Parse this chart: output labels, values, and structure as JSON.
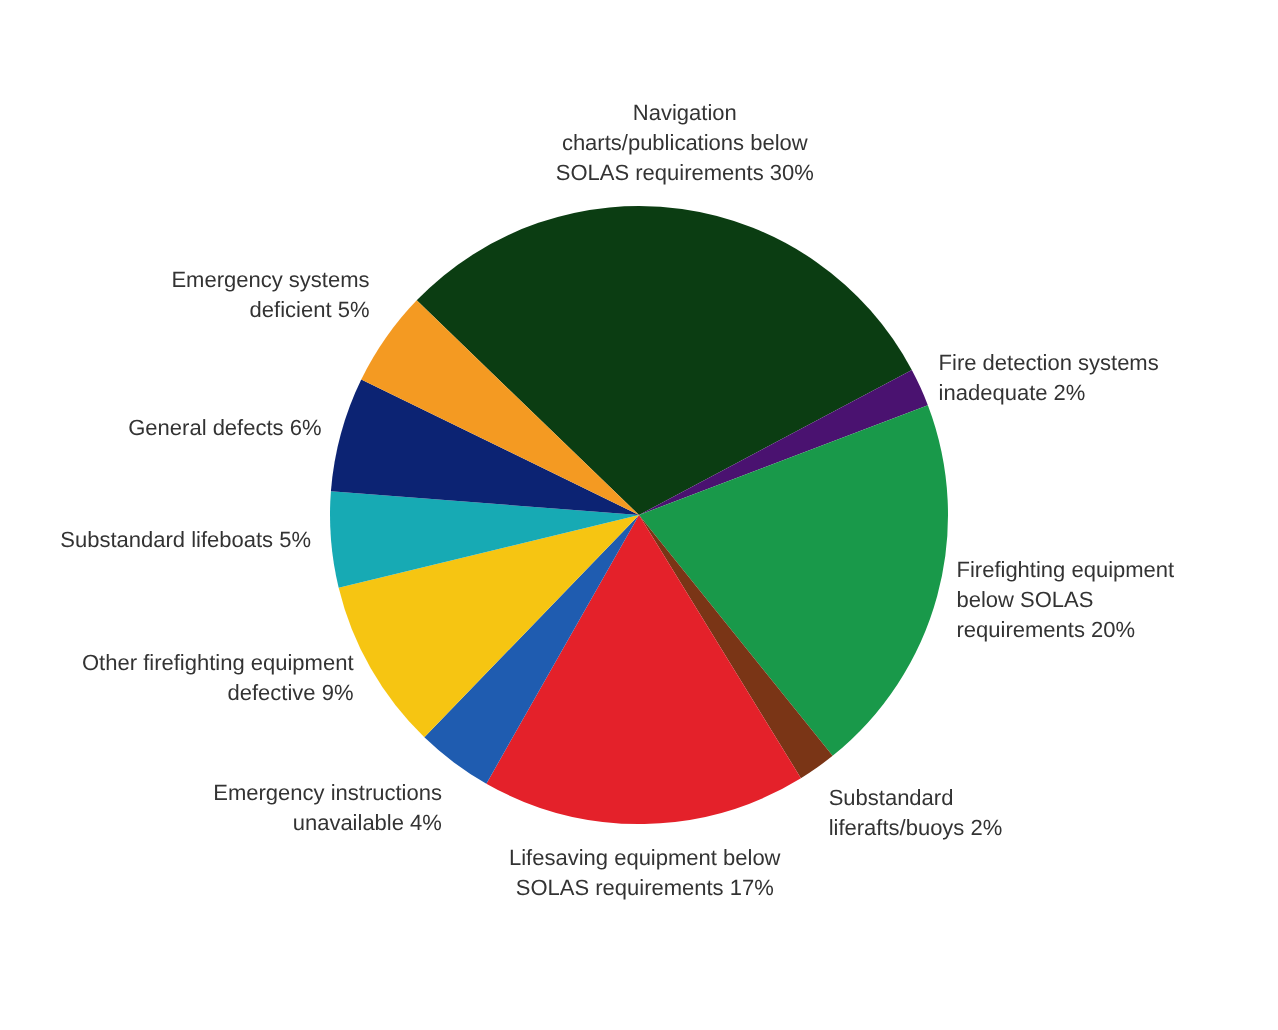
{
  "chart_data": {
    "type": "pie",
    "legend": false,
    "categories": [
      "Navigation charts/publications below SOLAS requirements",
      "Fire detection systems inadequate",
      "Firefighting equipment below SOLAS requirements",
      "Substandard liferafts/buoys",
      "Lifesaving equipment below SOLAS requirements",
      "Emergency instructions unavailable",
      "Other firefighting equipment defective",
      "Substandard lifeboats",
      "General defects",
      "Emergency systems deficient"
    ],
    "values": [
      30,
      2,
      20,
      2,
      17,
      4,
      9,
      5,
      6,
      5
    ],
    "value_labels": [
      "30%",
      "2%",
      "20%",
      "2%",
      "17%",
      "4%",
      "9%",
      "5%",
      "6%",
      "5%"
    ],
    "colors": [
      "#0b3d12",
      "#4a1270",
      "#19994a",
      "#7a3516",
      "#e4212a",
      "#1f5cb0",
      "#f6c512",
      "#17aab4",
      "#0c2373",
      "#f49a22"
    ]
  }
}
